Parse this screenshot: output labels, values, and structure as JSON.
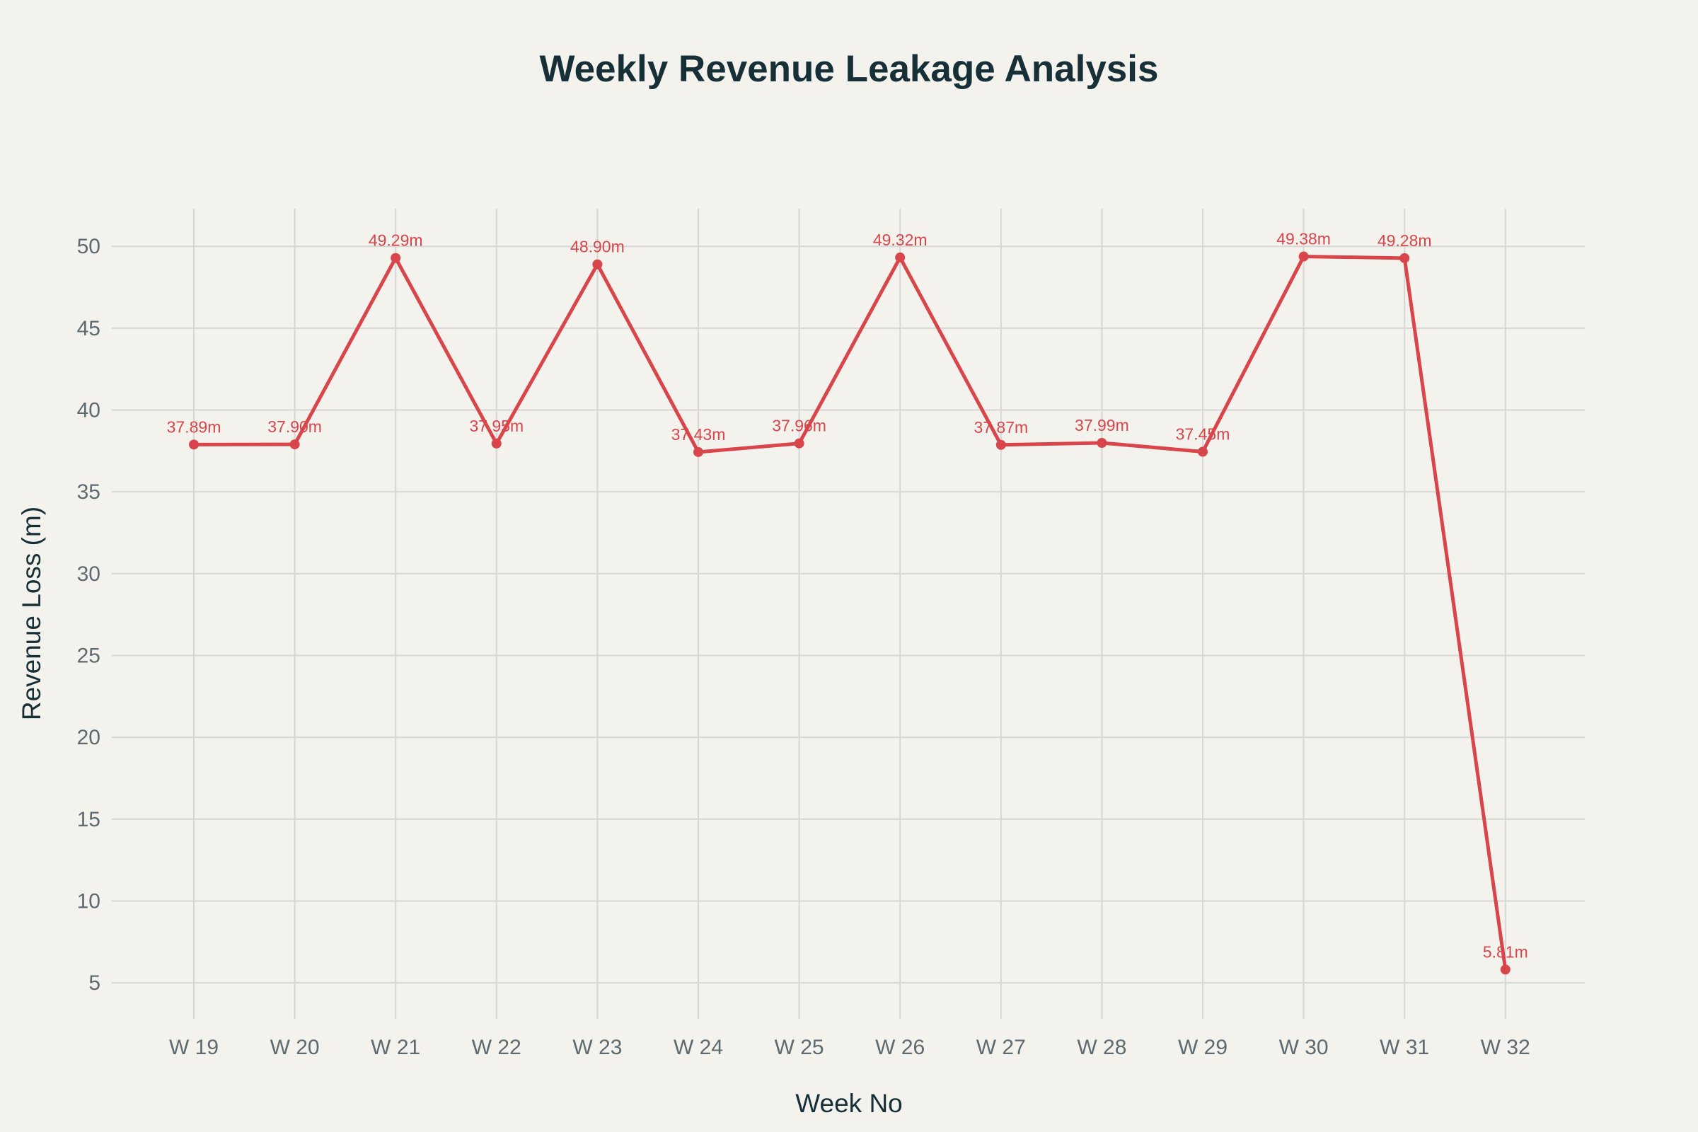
{
  "chart_data": {
    "type": "line",
    "title": "Weekly Revenue Leakage Analysis",
    "xlabel": "Week No",
    "ylabel": "Revenue Loss (m)",
    "categories": [
      "W 19",
      "W 20",
      "W 21",
      "W 22",
      "W 23",
      "W 24",
      "W 25",
      "W 26",
      "W 27",
      "W 28",
      "W 29",
      "W 30",
      "W 31",
      "W 32"
    ],
    "series": [
      {
        "values": [
          37.89,
          37.9,
          49.29,
          37.95,
          48.9,
          37.43,
          37.96,
          49.32,
          37.87,
          37.99,
          37.45,
          49.38,
          49.28,
          5.81
        ],
        "labels": [
          "37.89m",
          "37.90m",
          "49.29m",
          "37.95m",
          "48.90m",
          "37.43m",
          "37.96m",
          "49.32m",
          "37.87m",
          "37.99m",
          "37.45m",
          "49.38m",
          "49.28m",
          "5.81m"
        ],
        "color": "#d8454a"
      }
    ],
    "ylim": [
      2.8,
      52.3
    ],
    "yticks": [
      "5",
      "10",
      "15",
      "20",
      "25",
      "30",
      "35",
      "40",
      "45",
      "50"
    ],
    "grid": true,
    "legend": "none",
    "colors": {
      "background": "#f3f2ed",
      "grid": "#d6d6d6",
      "line": "#d8454a",
      "title": "#173038"
    }
  }
}
